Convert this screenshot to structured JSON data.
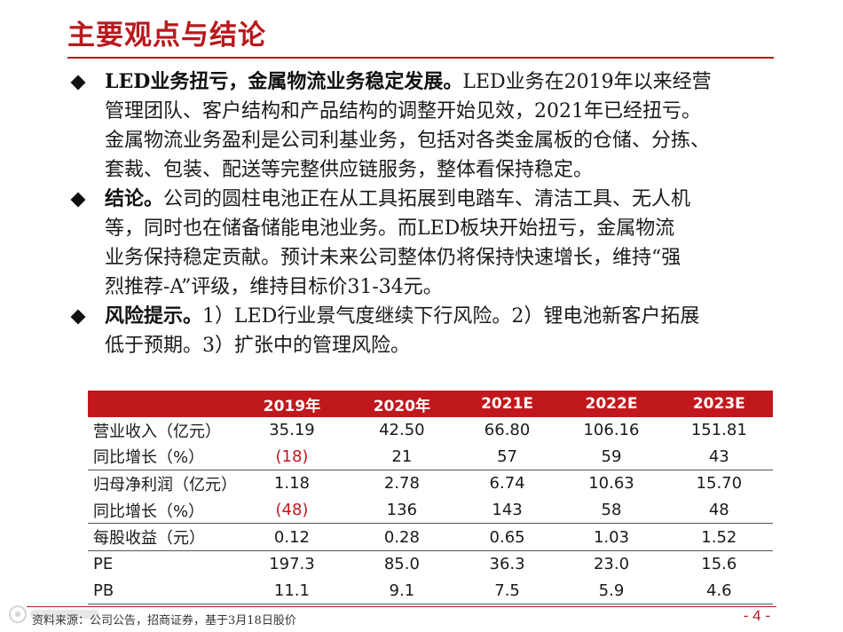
{
  "title": "主要观点与结论",
  "bullets": [
    {
      "lead": "LED业务扭亏，金属物流业务稳定发展。",
      "lines": [
        "LED业务在2019年以来经营",
        "管理团队、客户结构和产品结构的调整开始见效，2021年已经扭亏。",
        "金属物流业务盈利是公司利基业务，包括对各类金属板的仓储、分拣、",
        "套裁、包装、配送等完整供应链服务，整体看保持稳定。"
      ]
    },
    {
      "lead": "结论。",
      "lines": [
        "公司的圆柱电池正在从工具拓展到电踏车、清洁工具、无人机",
        "等，同时也在储备储能电池业务。而LED板块开始扭亏，金属物流",
        "业务保持稳定贡献。预计未来公司整体仍将保持快速增长，维持“强",
        "烈推荐-A”评级，维持目标价31-34元。"
      ]
    },
    {
      "lead": "风险提示。",
      "lines": [
        "1）LED行业景气度继续下行风险。2）锂电池新客户拓展",
        "低于预期。3）扩张中的管理风险。"
      ]
    }
  ],
  "table": {
    "headers": [
      "",
      "2019年",
      "2020年",
      "2021E",
      "2022E",
      "2023E"
    ],
    "rows": [
      {
        "label": "营业收入（亿元）",
        "values": [
          "35.19",
          "42.50",
          "66.80",
          "106.16",
          "151.81"
        ]
      },
      {
        "label": "同比增长（%）",
        "values": [
          "(18)",
          "21",
          "57",
          "59",
          "43"
        ]
      },
      {
        "label": "归母净利润（亿元）",
        "values": [
          "1.18",
          "2.78",
          "6.74",
          "10.63",
          "15.70"
        ]
      },
      {
        "label": "同比增长（%）",
        "values": [
          "(48)",
          "136",
          "143",
          "58",
          "48"
        ]
      },
      {
        "label": "每股收益（元）",
        "values": [
          "0.12",
          "0.28",
          "0.65",
          "1.03",
          "1.52"
        ]
      },
      {
        "label": "PE",
        "values": [
          "197.3",
          "85.0",
          "36.3",
          "23.0",
          "15.6"
        ]
      },
      {
        "label": "PB",
        "values": [
          "11.1",
          "9.1",
          "7.5",
          "5.9",
          "4.6"
        ]
      }
    ],
    "negative_color": "#c0181d",
    "header_color": "#c0181d"
  },
  "footer": {
    "source": "资料来源：公司公告，招商证券，基于3月18日股价",
    "page": "- 4 -"
  },
  "colors": {
    "accent": "#b8191d",
    "text": "#1a1a1a"
  }
}
